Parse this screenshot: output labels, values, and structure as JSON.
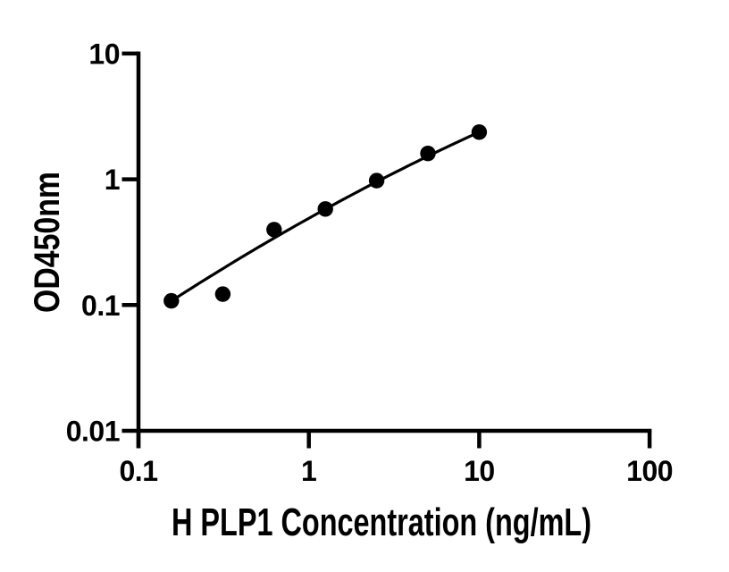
{
  "page": {
    "background": "#ffffff",
    "accent": "#000000"
  },
  "chart_data": {
    "type": "scatter",
    "title": "",
    "xlabel": "H PLP1 Concentration (ng/mL)",
    "ylabel": "OD450nm",
    "x_scale": "log",
    "y_scale": "log",
    "xlim": [
      0.1,
      100
    ],
    "ylim": [
      0.01,
      10
    ],
    "grid": false,
    "legend": "none",
    "x_ticks": [
      {
        "value": 0.1,
        "label": "0.1"
      },
      {
        "value": 1,
        "label": "1"
      },
      {
        "value": 10,
        "label": "10"
      },
      {
        "value": 100,
        "label": "100"
      }
    ],
    "y_ticks": [
      {
        "value": 0.01,
        "label": "0.01"
      },
      {
        "value": 0.1,
        "label": "0.1"
      },
      {
        "value": 1,
        "label": "1"
      },
      {
        "value": 10,
        "label": "10"
      }
    ],
    "series": [
      {
        "name": "Standard data points",
        "type": "scatter",
        "marker": "filled-circle",
        "color": "#000000",
        "x": [
          0.156,
          0.3125,
          0.625,
          1.25,
          2.5,
          5,
          10
        ],
        "y": [
          0.108,
          0.122,
          0.398,
          0.581,
          0.976,
          1.605,
          2.371
        ]
      },
      {
        "name": "Fitted standard curve",
        "type": "line",
        "color": "#000000",
        "fit_model": "log10(od) = a + b*u + c*u^2, u = log10(conc)",
        "coefficients": {
          "a": -0.31,
          "b": 0.757,
          "c": -0.072
        },
        "x_range": [
          0.156,
          10
        ]
      }
    ]
  }
}
